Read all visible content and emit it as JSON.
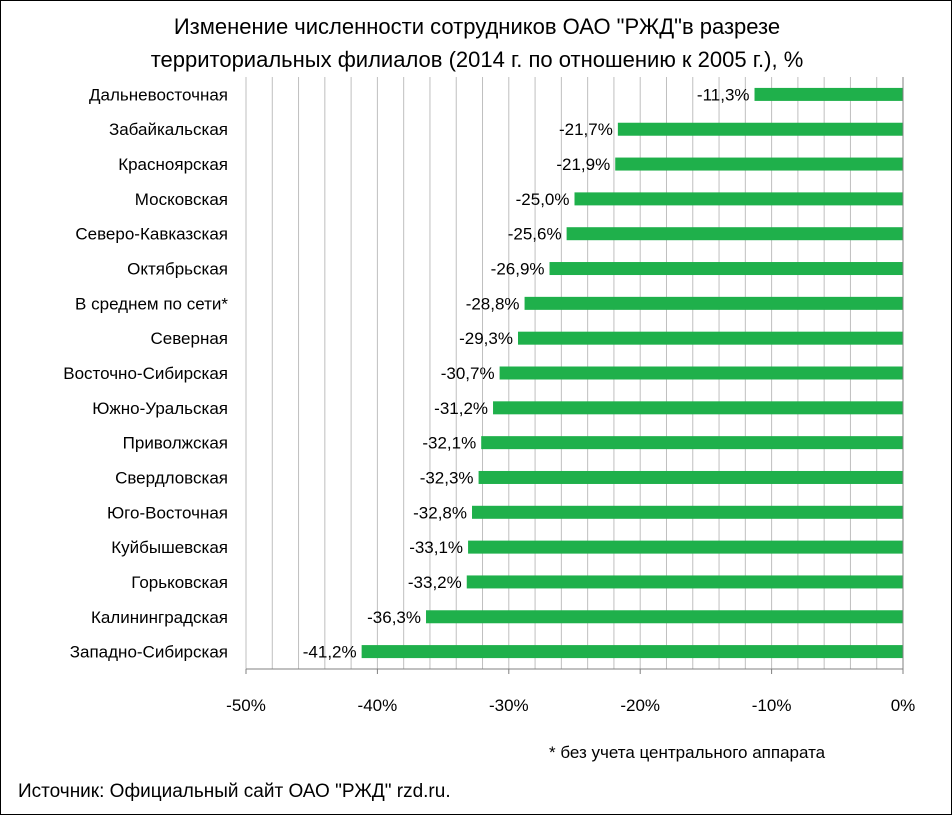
{
  "chart_data": {
    "type": "bar",
    "orientation": "horizontal",
    "title_lines": [
      "Изменение численности сотрудников ОАО \"РЖД\"в разрезе",
      "территориальных филиалов  (2014 г. по отношению к 2005 г.), %"
    ],
    "categories": [
      "Дальневосточная",
      "Забайкальская",
      "Красноярская",
      "Московская",
      "Северо-Кавказская",
      "Октябрьская",
      "В среднем по сети*",
      "Северная",
      "Восточно-Сибирская",
      "Южно-Уральская",
      "Приволжская",
      "Свердловская",
      "Юго-Восточная",
      "Куйбышевская",
      "Горьковская",
      "Калининградская",
      "Западно-Сибирская"
    ],
    "values": [
      -11.3,
      -21.7,
      -21.9,
      -25.0,
      -25.6,
      -26.9,
      -28.8,
      -29.3,
      -30.7,
      -31.2,
      -32.1,
      -32.3,
      -32.8,
      -33.1,
      -33.2,
      -36.3,
      -41.2
    ],
    "data_labels": [
      "-11,3%",
      "-21,7%",
      "-21,9%",
      "-25,0%",
      "-25,6%",
      "-26,9%",
      "-28,8%",
      "-29,3%",
      "-30,7%",
      "-31,2%",
      "-32,1%",
      "-32,3%",
      "-32,8%",
      "-33,1%",
      "-33,2%",
      "-36,3%",
      "-41,2%"
    ],
    "xlim": [
      -50,
      0
    ],
    "x_ticks": [
      -50,
      -40,
      -30,
      -20,
      -10,
      0
    ],
    "x_tick_labels": [
      "-50%",
      "-40%",
      "-30%",
      "-20%",
      "-10%",
      "0%"
    ],
    "x_grid_step": 2,
    "grid": true,
    "bar_color": "#1fb04b",
    "grid_color": "#bfbfbf",
    "axis_color": "#808080"
  },
  "footnote": "* без учета центрального аппарата",
  "source": "Источник: Официальный сайт ОАО \"РЖД\"  rzd.ru."
}
